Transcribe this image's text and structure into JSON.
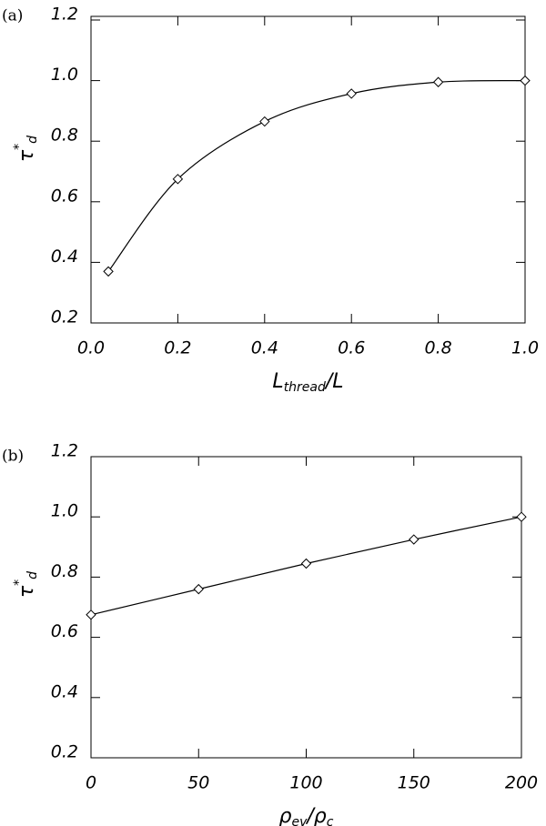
{
  "chart_data": [
    {
      "type": "line",
      "panel_label": "(a)",
      "x_label": [
        "L",
        "thread",
        "/L"
      ],
      "y_label": [
        "τ",
        "*",
        "d"
      ],
      "x": [
        0.04,
        0.2,
        0.4,
        0.6,
        0.8,
        1.0
      ],
      "series": [
        {
          "color": "#000000",
          "marker": "diamond",
          "values": [
            0.37,
            0.675,
            0.865,
            0.957,
            0.995,
            1.0
          ]
        }
      ],
      "xlim": [
        0,
        1
      ],
      "xticks": [
        {
          "value": 0,
          "label": "0.0"
        },
        0.2,
        0.4,
        0.6,
        0.8,
        {
          "value": 1,
          "label": "1.0"
        }
      ],
      "ylim": [
        0.2,
        1.2
      ],
      "yticks": [
        0.2,
        0.4,
        0.6,
        0.8,
        {
          "value": 1,
          "label": "1.0"
        },
        1.2
      ]
    },
    {
      "type": "line",
      "panel_label": "(b)",
      "x_label": [
        "ρ",
        "ev",
        "/ρ",
        "c"
      ],
      "y_label": [
        "τ",
        "*",
        "d"
      ],
      "x": [
        0,
        50,
        100,
        150,
        200
      ],
      "series": [
        {
          "color": "#000000",
          "marker": "diamond",
          "values": [
            0.675,
            0.76,
            0.845,
            0.925,
            1.0
          ]
        }
      ],
      "xlim": [
        0,
        200
      ],
      "xticks": [
        0,
        50,
        100,
        150,
        200
      ],
      "ylim": [
        0.2,
        1.2
      ],
      "yticks": [
        0.2,
        0.4,
        0.6,
        0.8,
        {
          "value": 1,
          "label": "1.0"
        },
        1.2
      ]
    }
  ]
}
